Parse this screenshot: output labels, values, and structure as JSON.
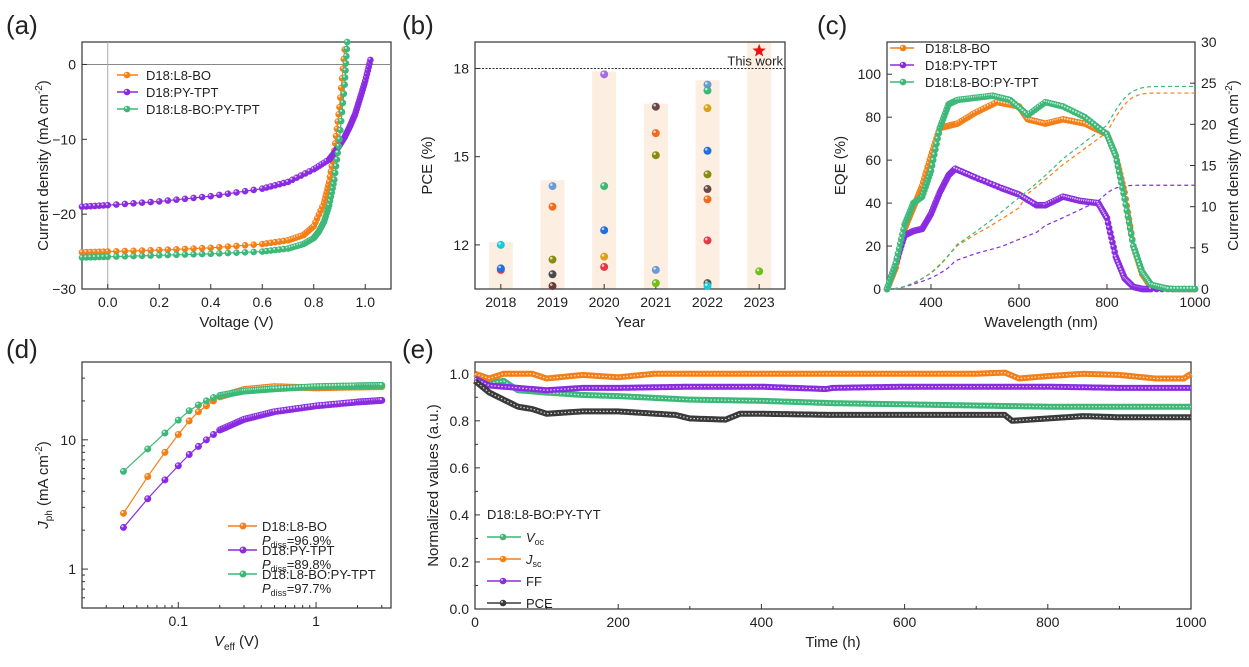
{
  "figure": {
    "panel_labels": [
      "(a)",
      "(b)",
      "(c)",
      "(d)",
      "(e)"
    ]
  },
  "colors": {
    "orange": "#f57f17",
    "purple": "#8a2be2",
    "green": "#3cb878",
    "dark": "#3a3a3a",
    "bar": "#fdeee2",
    "star": "#ee1111"
  },
  "chart_data": [
    {
      "panel": "(a)",
      "type": "line",
      "title": "",
      "xlabel": "Voltage (V)",
      "ylabel": "Current density (mA cm-2)",
      "xlim": [
        -0.1,
        1.1
      ],
      "ylim": [
        -30,
        3
      ],
      "xticks": [
        "0.0",
        "0.2",
        "0.4",
        "0.6",
        "0.8",
        "1.0"
      ],
      "yticks": [
        "0",
        "-10",
        "-20",
        "-30"
      ],
      "legend_position": "top-left",
      "series": [
        {
          "name": "D18:L8-BO",
          "color": "#f57f17",
          "jsc": -25.0,
          "voc": 0.905,
          "slope": -2.0,
          "x": [
            -0.1,
            0.0,
            0.2,
            0.4,
            0.6,
            0.7,
            0.76,
            0.8,
            0.84,
            0.86,
            0.88,
            0.9,
            0.92
          ],
          "y": [
            -25.1,
            -25.0,
            -24.8,
            -24.5,
            -24.0,
            -23.5,
            -22.8,
            -21.6,
            -18.5,
            -15.7,
            -11.5,
            -5.7,
            2.0
          ]
        },
        {
          "name": "D18:PY-TPT",
          "color": "#8a2be2",
          "jsc": -18.8,
          "voc": 1.01,
          "x": [
            -0.1,
            0.0,
            0.2,
            0.4,
            0.6,
            0.7,
            0.8,
            0.86,
            0.88,
            0.9,
            0.92,
            0.94,
            0.96,
            0.98,
            1.0,
            1.02
          ],
          "y": [
            -19.0,
            -18.8,
            -18.3,
            -17.6,
            -16.6,
            -15.7,
            -14.0,
            -12.7,
            -11.8,
            -10.8,
            -9.7,
            -8.3,
            -6.7,
            -4.5,
            -2.2,
            0.6
          ]
        },
        {
          "name": "D18:L8-BO:PY-TPT",
          "color": "#3cb878",
          "jsc": -25.7,
          "voc": 0.92,
          "x": [
            -0.1,
            0.0,
            0.2,
            0.4,
            0.6,
            0.7,
            0.76,
            0.8,
            0.82,
            0.84,
            0.86,
            0.88,
            0.9,
            0.92,
            0.93
          ],
          "y": [
            -25.8,
            -25.7,
            -25.5,
            -25.3,
            -25.0,
            -24.6,
            -24.0,
            -23.2,
            -22.3,
            -21.0,
            -18.8,
            -15.4,
            -10.0,
            -2.7,
            3.0
          ]
        }
      ]
    },
    {
      "panel": "(b)",
      "type": "scatter",
      "title": "",
      "xlabel": "Year",
      "ylabel": "PCE (%)",
      "categories": [
        "2018",
        "2019",
        "2020",
        "2021",
        "2022",
        "2023"
      ],
      "ylim": [
        10.5,
        18.9
      ],
      "yticks": [
        "12",
        "15",
        "18"
      ],
      "reference_line": 18.0,
      "annotation": "This work",
      "bar_tops": [
        12.1,
        14.2,
        17.9,
        16.8,
        17.6,
        18.9
      ],
      "points": [
        {
          "year": "2018",
          "pce": 12.0,
          "color": "#1ec8d8"
        },
        {
          "year": "2018",
          "pce": 11.15,
          "color": "#e53945"
        },
        {
          "year": "2018",
          "pce": 11.2,
          "color": "#1f6fe0"
        },
        {
          "year": "2019",
          "pce": 14.0,
          "color": "#6a9bd8"
        },
        {
          "year": "2019",
          "pce": 13.3,
          "color": "#f26a1b"
        },
        {
          "year": "2019",
          "pce": 11.5,
          "color": "#8a8a12"
        },
        {
          "year": "2019",
          "pce": 11.0,
          "color": "#4a4a4a"
        },
        {
          "year": "2019",
          "pce": 10.6,
          "color": "#6b3b3b"
        },
        {
          "year": "2020",
          "pce": 17.8,
          "color": "#a46ee0"
        },
        {
          "year": "2020",
          "pce": 14.0,
          "color": "#3cb878"
        },
        {
          "year": "2020",
          "pce": 12.5,
          "color": "#1f6fe0"
        },
        {
          "year": "2020",
          "pce": 11.6,
          "color": "#d9a21a"
        },
        {
          "year": "2020",
          "pce": 11.25,
          "color": "#e53945"
        },
        {
          "year": "2021",
          "pce": 16.7,
          "color": "#6b4848"
        },
        {
          "year": "2021",
          "pce": 15.8,
          "color": "#f26a1b"
        },
        {
          "year": "2021",
          "pce": 15.05,
          "color": "#8a8a12"
        },
        {
          "year": "2021",
          "pce": 11.15,
          "color": "#6a9bd8"
        },
        {
          "year": "2021",
          "pce": 10.7,
          "color": "#6cc01a"
        },
        {
          "year": "2022",
          "pce": 17.45,
          "color": "#6a9bd8"
        },
        {
          "year": "2022",
          "pce": 17.25,
          "color": "#3cb878"
        },
        {
          "year": "2022",
          "pce": 16.65,
          "color": "#d9a21a"
        },
        {
          "year": "2022",
          "pce": 15.2,
          "color": "#1f6fe0"
        },
        {
          "year": "2022",
          "pce": 14.4,
          "color": "#8a8a12"
        },
        {
          "year": "2022",
          "pce": 13.9,
          "color": "#6b4848"
        },
        {
          "year": "2022",
          "pce": 13.55,
          "color": "#f26a1b"
        },
        {
          "year": "2022",
          "pce": 12.15,
          "color": "#e53945"
        },
        {
          "year": "2022",
          "pce": 10.7,
          "color": "#555555"
        },
        {
          "year": "2022",
          "pce": 10.6,
          "color": "#1ec8d8"
        },
        {
          "year": "2023",
          "pce": 11.1,
          "color": "#6cc01a"
        }
      ],
      "this_work": {
        "year": "2023",
        "pce": 18.6
      }
    },
    {
      "panel": "(c)",
      "type": "line",
      "title": "",
      "xlabel": "Wavelength (nm)",
      "ylabel": "EQE (%)",
      "ylabel_right": "Current density (mA cm-2)",
      "xlim": [
        300,
        1000
      ],
      "ylim": [
        0,
        115
      ],
      "ylim_right": [
        0,
        30
      ],
      "xticks": [
        "400",
        "600",
        "800",
        "1000"
      ],
      "yticks": [
        "0",
        "20",
        "40",
        "60",
        "80",
        "100"
      ],
      "yticks_right": [
        "0",
        "5",
        "10",
        "15",
        "20",
        "25",
        "30"
      ],
      "legend_position": "top-left",
      "series": [
        {
          "name": "D18:L8-BO",
          "color": "#f57f17",
          "x": [
            300,
            320,
            340,
            360,
            380,
            400,
            420,
            440,
            460,
            500,
            550,
            600,
            620,
            660,
            700,
            750,
            800,
            820,
            840,
            860,
            880,
            900,
            950,
            1000
          ],
          "y": [
            0,
            10,
            28,
            38,
            48,
            62,
            75,
            76,
            77,
            82,
            87,
            85,
            79,
            77,
            79,
            77,
            72,
            62,
            45,
            20,
            7,
            1,
            0,
            0
          ],
          "integrated_jsc_final": 23.8
        },
        {
          "name": "D18:PY-TPT",
          "color": "#8a2be2",
          "x": [
            300,
            320,
            340,
            360,
            380,
            400,
            420,
            440,
            455,
            500,
            560,
            600,
            640,
            660,
            700,
            740,
            780,
            800,
            820,
            840,
            860,
            880,
            900,
            1000
          ],
          "y": [
            0,
            12,
            25,
            27,
            28,
            35,
            45,
            53,
            56,
            52,
            47,
            44,
            39,
            39,
            43,
            41,
            40,
            33,
            15,
            5,
            1,
            0,
            0,
            0
          ],
          "integrated_jsc_final": 12.6
        },
        {
          "name": "D18:L8-BO:PY-TPT",
          "color": "#3cb878",
          "x": [
            300,
            320,
            340,
            360,
            380,
            400,
            420,
            440,
            460,
            500,
            540,
            580,
            620,
            660,
            700,
            750,
            800,
            820,
            840,
            860,
            880,
            900,
            940,
            1000
          ],
          "y": [
            0,
            12,
            30,
            40,
            43,
            55,
            75,
            86,
            88,
            89,
            90,
            88,
            81,
            87,
            85,
            80,
            72,
            62,
            42,
            20,
            8,
            2,
            0,
            0
          ],
          "integrated_jsc_final": 24.6
        }
      ]
    },
    {
      "panel": "(d)",
      "type": "line",
      "title": "",
      "xlabel": "Veff (V)",
      "ylabel": "Jph (mA cm-2)",
      "xscale": "log",
      "yscale": "log",
      "xlim": [
        0.02,
        3.5
      ],
      "ylim": [
        0.5,
        40
      ],
      "xticks": [
        "0.1",
        "1"
      ],
      "yticks": [
        "1",
        "10"
      ],
      "legend_position": "bottom-right",
      "series": [
        {
          "name": "D18:L8-BO",
          "pdiss": "96.9%",
          "color": "#f57f17",
          "x": [
            0.04,
            0.06,
            0.08,
            0.1,
            0.12,
            0.14,
            0.16,
            0.18,
            0.2,
            0.3,
            0.5,
            1.0,
            2.0,
            3.0
          ],
          "y": [
            2.7,
            5.2,
            8.0,
            11.0,
            14.0,
            16.5,
            18.3,
            20.0,
            21.5,
            24.5,
            25.8,
            25.2,
            25.6,
            25.8
          ]
        },
        {
          "name": "D18:PY-TPT",
          "pdiss": "89.8%",
          "color": "#8a2be2",
          "x": [
            0.04,
            0.06,
            0.08,
            0.1,
            0.12,
            0.14,
            0.16,
            0.18,
            0.2,
            0.3,
            0.5,
            1.0,
            2.0,
            3.0
          ],
          "y": [
            2.1,
            3.5,
            4.9,
            6.3,
            7.7,
            8.9,
            10.0,
            11.0,
            11.9,
            14.4,
            16.5,
            18.3,
            19.6,
            20.2
          ]
        },
        {
          "name": "D18:L8-BO:PY-TPT",
          "pdiss": "97.7%",
          "color": "#3cb878",
          "x": [
            0.04,
            0.06,
            0.08,
            0.1,
            0.12,
            0.14,
            0.16,
            0.18,
            0.2,
            0.3,
            0.5,
            1.0,
            2.0,
            3.0
          ],
          "y": [
            5.7,
            8.5,
            11.3,
            14.2,
            16.8,
            18.6,
            20.0,
            21.2,
            22.0,
            23.8,
            24.8,
            25.8,
            26.2,
            26.4
          ]
        }
      ],
      "legend_pdiss_label": "P",
      "legend_pdiss_sub": "diss"
    },
    {
      "panel": "(e)",
      "type": "line",
      "title": "",
      "xlabel": "Time (h)",
      "ylabel": "Normalized values (a.u.)",
      "xlim": [
        0,
        1000
      ],
      "ylim": [
        0,
        1.05
      ],
      "xticks": [
        "0",
        "200",
        "400",
        "600",
        "800",
        "1000"
      ],
      "yticks": [
        "0.0",
        "0.2",
        "0.4",
        "0.6",
        "0.8",
        "1.0"
      ],
      "legend_title": "D18:L8-BO:PY-TYT",
      "legend_position": "bottom-left",
      "series": [
        {
          "name": "Voc",
          "label_main": "V",
          "label_sub": "oc",
          "italic": true,
          "color": "#3cb878",
          "x": [
            0,
            20,
            40,
            60,
            100,
            150,
            200,
            300,
            400,
            500,
            600,
            700,
            800,
            900,
            1000
          ],
          "y": [
            1.0,
            0.96,
            0.97,
            0.93,
            0.92,
            0.91,
            0.905,
            0.89,
            0.885,
            0.875,
            0.87,
            0.865,
            0.86,
            0.86,
            0.86
          ]
        },
        {
          "name": "Jsc",
          "label_main": "J",
          "label_sub": "sc",
          "italic": true,
          "color": "#f57f17",
          "x": [
            0,
            20,
            40,
            80,
            100,
            150,
            200,
            250,
            300,
            400,
            500,
            600,
            700,
            740,
            760,
            800,
            850,
            900,
            950,
            990,
            1000
          ],
          "y": [
            1.0,
            0.98,
            1.0,
            1.0,
            0.98,
            0.995,
            0.985,
            1.0,
            1.0,
            1.0,
            1.0,
            1.0,
            1.0,
            1.005,
            0.98,
            0.99,
            1.0,
            0.995,
            0.98,
            0.98,
            1.0
          ]
        },
        {
          "name": "FF",
          "label_main": "FF",
          "label_sub": "",
          "italic": false,
          "color": "#8a2be2",
          "x": [
            0,
            20,
            60,
            100,
            150,
            200,
            300,
            400,
            490,
            500,
            600,
            700,
            800,
            900,
            1000
          ],
          "y": [
            0.98,
            0.95,
            0.94,
            0.93,
            0.94,
            0.94,
            0.945,
            0.945,
            0.935,
            0.94,
            0.945,
            0.945,
            0.945,
            0.94,
            0.94
          ]
        },
        {
          "name": "PCE",
          "label_main": "PCE",
          "label_sub": "",
          "italic": false,
          "color": "#3a3a3a",
          "x": [
            0,
            20,
            40,
            60,
            80,
            100,
            150,
            200,
            280,
            300,
            350,
            370,
            400,
            500,
            600,
            740,
            750,
            800,
            850,
            900,
            950,
            1000
          ],
          "y": [
            0.97,
            0.92,
            0.89,
            0.86,
            0.85,
            0.83,
            0.84,
            0.84,
            0.825,
            0.81,
            0.805,
            0.83,
            0.83,
            0.825,
            0.825,
            0.825,
            0.8,
            0.81,
            0.82,
            0.815,
            0.815,
            0.815
          ]
        }
      ]
    }
  ]
}
